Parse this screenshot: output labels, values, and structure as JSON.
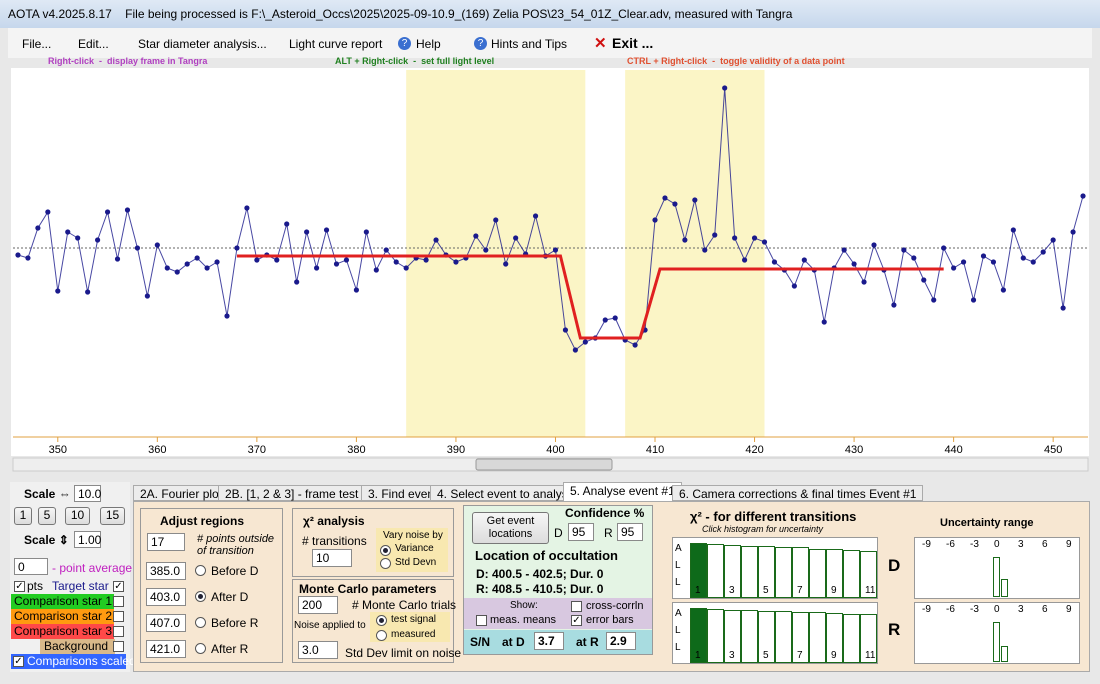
{
  "window": {
    "title": "AOTA v4.2025.8.17    File being processed is F:\\_Asteroid_Occs\\2025\\2025-09-10.9_(169) Zelia POS\\23_54_01Z_Clear.adv, measured with Tangra"
  },
  "menu": [
    "File...",
    "Edit...",
    "Star diameter analysis...",
    "Light curve report",
    "Help",
    "Hints and Tips",
    "Exit ..."
  ],
  "hints": [
    "Right-click  -  display frame in Tangra",
    "ALT + Right-click  -  set full light level",
    "CTRL + Right-click  -  toggle validity of a data point"
  ],
  "chart_data": {
    "type": "line",
    "xlim": [
      345.5,
      453.5
    ],
    "ylim": [
      0,
      370
    ],
    "xticks": [
      350,
      360,
      370,
      380,
      390,
      400,
      410,
      420,
      430,
      440,
      450
    ],
    "series": [
      {
        "color": "#1a1a8c",
        "x": [
          346,
          347,
          348,
          349,
          350,
          351,
          352,
          353,
          354,
          355,
          356,
          357,
          358,
          359,
          360,
          361,
          362,
          363,
          364,
          365,
          366,
          367,
          368,
          369,
          370,
          371,
          372,
          373,
          374,
          375,
          376,
          377,
          378,
          379,
          380,
          381,
          382,
          383,
          384,
          385,
          386,
          387,
          388,
          389,
          390,
          391,
          392,
          393,
          394,
          395,
          396,
          397,
          398,
          399,
          400,
          401,
          402,
          403,
          404,
          405,
          406,
          407,
          408,
          409,
          410,
          411,
          412,
          413,
          414,
          415,
          416,
          417,
          418,
          419,
          420,
          421,
          422,
          423,
          424,
          425,
          426,
          427,
          428,
          429,
          430,
          431,
          432,
          433,
          434,
          435,
          436,
          437,
          438,
          439,
          440,
          441,
          442,
          443,
          444,
          445,
          446,
          447,
          448,
          449,
          450,
          451,
          452,
          453
        ],
        "values": [
          185,
          182,
          212,
          228,
          149,
          208,
          202,
          148,
          200,
          228,
          181,
          230,
          192,
          144,
          195,
          172,
          168,
          176,
          182,
          172,
          178,
          124,
          192,
          232,
          180,
          185,
          180,
          216,
          158,
          208,
          172,
          210,
          176,
          180,
          150,
          208,
          170,
          190,
          178,
          172,
          182,
          180,
          200,
          185,
          178,
          182,
          204,
          190,
          220,
          176,
          202,
          186,
          224,
          184,
          190,
          110,
          90,
          98,
          102,
          120,
          122,
          100,
          95,
          110,
          220,
          242,
          236,
          200,
          240,
          190,
          205,
          352,
          202,
          180,
          202,
          198,
          178,
          170,
          154,
          180,
          170,
          118,
          172,
          190,
          176,
          158,
          195,
          170,
          135,
          190,
          182,
          160,
          140,
          192,
          172,
          178,
          140,
          184,
          178,
          150,
          210,
          182,
          178,
          188,
          200,
          132,
          208,
          244
        ]
      },
      {
        "color": "#e02020",
        "x": [
          368,
          400.5,
          402.5,
          408.5,
          410.5,
          439
        ],
        "values": [
          184,
          184,
          102,
          102,
          171,
          171
        ]
      }
    ]
  },
  "left_panel": {
    "scale_h": "Scale",
    "scale_h_value": "10.0",
    "buttons": [
      "1",
      "5",
      "10",
      "15"
    ],
    "scale_v": "Scale",
    "scale_v_value": "1.00",
    "avg_value": "0",
    "avg_label": "- point average",
    "pts": "pts",
    "target": "Target star",
    "stars": [
      "Comparison star 1",
      "Comparison star 2",
      "Comparison star 3",
      "Background",
      "Comparisons scaled"
    ]
  },
  "tabs": [
    "2A. Fourier plot",
    "2B. [1, 2 & 3] - frame test",
    "3. Find events",
    "4. Select event to analyse",
    "5. Analyse event #1",
    "6. Camera corrections & final times Event #1"
  ],
  "analyse": {
    "adjust_title": "Adjust regions",
    "points_outside": "17",
    "points_outside_label": "# points outside of transition",
    "regions": [
      {
        "value": 385,
        "label": "385.0"
      },
      {
        "value": 403,
        "label": "403.0"
      },
      {
        "value": 407,
        "label": "407.0"
      },
      {
        "value": 421,
        "label": "421.0"
      }
    ],
    "region_names": [
      "Before D",
      "After D",
      "Before R",
      "After R"
    ],
    "chi_title": "χ² analysis",
    "transitions_label": "# transitions",
    "transitions": "10",
    "vary_noise": "Vary noise by",
    "variance": "Variance",
    "std_devn": "Std Devn",
    "mc_title": "Monte Carlo parameters",
    "mc_trials": "200",
    "mc_trials_label": "# Monte Carlo trials",
    "noise_applied": "Noise applied to",
    "test_signal": "test signal",
    "measured": "measured",
    "std_limit": "3.0",
    "std_limit_label": "Std Dev limit on noise",
    "get_events": "Get event locations",
    "confidence": "Confidence %",
    "conf_d_label": "D",
    "conf_d": "95",
    "conf_r_label": "R",
    "conf_r": "95",
    "location_title": "Location of occultation",
    "loc_d": "D: 400.5 - 402.5; Dur. 0",
    "loc_r": "R: 408.5 - 410.5; Dur. 0",
    "show": "Show:",
    "meas_means": "meas. means",
    "cross_corr": "cross-corrln",
    "error_bars": "error bars",
    "sn": "S/N",
    "at_d": "at D",
    "sn_d": "3.7",
    "at_r": "at R",
    "sn_r": "2.9"
  },
  "chi2": {
    "title": "χ² - for different transitions",
    "subtitle": "Click histogram for uncertainty",
    "all": [
      "A",
      "L",
      "L"
    ],
    "labels": [
      "1",
      "3",
      "5",
      "7",
      "9",
      "11"
    ],
    "D_label": "D",
    "R_label": "R",
    "D": [
      100,
      98,
      97,
      95,
      94,
      93,
      92,
      90,
      89,
      88,
      86
    ],
    "R": [
      100,
      98,
      97,
      96,
      95,
      94,
      93,
      92,
      91,
      90,
      89
    ]
  },
  "uncertainty": {
    "title": "Uncertainty range",
    "ticks": [
      "-9",
      "-6",
      "-3",
      "0",
      "3",
      "6",
      "9"
    ],
    "D": [
      100,
      45
    ],
    "R": [
      100,
      40
    ]
  }
}
